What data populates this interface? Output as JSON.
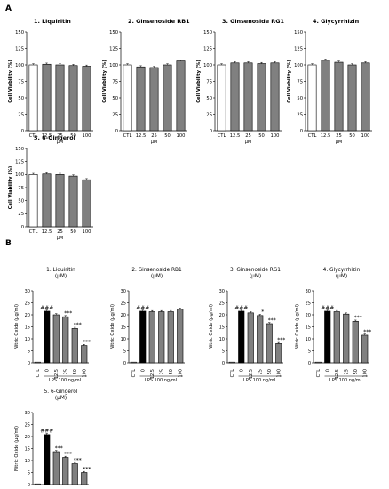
{
  "panel_labels": {
    "a": "A",
    "b": "B"
  },
  "chart_data": [
    {
      "panel": "A",
      "type": "bar",
      "title": "1. Liquiritin",
      "ylabel": "Cell Viability (%)",
      "ylim": [
        0,
        150
      ],
      "yticks": [
        0,
        25,
        50,
        75,
        100,
        125,
        150
      ],
      "categories": [
        "CTL",
        "12.5",
        "25",
        "50",
        "100"
      ],
      "unit": "μM",
      "values": [
        100,
        101,
        100,
        99,
        98
      ],
      "bar_colors": [
        "#ffffff",
        "#808080",
        "#808080",
        "#808080",
        "#808080"
      ],
      "annotations": [
        "",
        "",
        "",
        "",
        ""
      ]
    },
    {
      "panel": "A",
      "type": "bar",
      "title": "2. Ginsenoside RB1",
      "ylabel": "Cell Viability (%)",
      "ylim": [
        0,
        150
      ],
      "yticks": [
        0,
        25,
        50,
        75,
        100,
        125,
        150
      ],
      "categories": [
        "CTL",
        "12.5",
        "25",
        "50",
        "100"
      ],
      "unit": "μM",
      "values": [
        100,
        97,
        96,
        100,
        106
      ],
      "bar_colors": [
        "#ffffff",
        "#808080",
        "#808080",
        "#808080",
        "#808080"
      ],
      "annotations": [
        "",
        "",
        "",
        "",
        ""
      ]
    },
    {
      "panel": "A",
      "type": "bar",
      "title": "3. Ginsenoside RG1",
      "ylabel": "Cell Viability (%)",
      "ylim": [
        0,
        150
      ],
      "yticks": [
        0,
        25,
        50,
        75,
        100,
        125,
        150
      ],
      "categories": [
        "CTL",
        "12.5",
        "25",
        "50",
        "100"
      ],
      "unit": "μM",
      "values": [
        100,
        103,
        103,
        102,
        103
      ],
      "bar_colors": [
        "#ffffff",
        "#808080",
        "#808080",
        "#808080",
        "#808080"
      ],
      "annotations": [
        "",
        "",
        "",
        "",
        ""
      ]
    },
    {
      "panel": "A",
      "type": "bar",
      "title": "4. Glycyrrhizin",
      "ylabel": "Cell Viability (%)",
      "ylim": [
        0,
        150
      ],
      "yticks": [
        0,
        25,
        50,
        75,
        100,
        125,
        150
      ],
      "categories": [
        "CTL",
        "12.5",
        "25",
        "50",
        "100"
      ],
      "unit": "μM",
      "values": [
        100,
        107,
        104,
        100,
        103
      ],
      "bar_colors": [
        "#ffffff",
        "#808080",
        "#808080",
        "#808080",
        "#808080"
      ],
      "annotations": [
        "",
        "",
        "",
        "",
        ""
      ]
    },
    {
      "panel": "A",
      "type": "bar",
      "title": "5. 6-Gingerol",
      "ylabel": "Cell Viability (%)",
      "ylim": [
        0,
        150
      ],
      "yticks": [
        0,
        25,
        50,
        75,
        100,
        125,
        150
      ],
      "categories": [
        "CTL",
        "12.5",
        "25",
        "50",
        "100"
      ],
      "unit": "μM",
      "values": [
        100,
        101,
        100,
        97,
        90
      ],
      "bar_colors": [
        "#ffffff",
        "#808080",
        "#808080",
        "#808080",
        "#808080"
      ],
      "annotations": [
        "",
        "",
        "",
        "",
        ""
      ]
    },
    {
      "panel": "B",
      "type": "bar",
      "title": "1. Liquiritin",
      "title2": "(μM)",
      "ylabel": "Nitric Oxide (μg/ml)",
      "ylim": [
        0,
        30
      ],
      "yticks": [
        0,
        5,
        10,
        15,
        20,
        25,
        30
      ],
      "categories": [
        "CTL",
        "0",
        "12.5",
        "25",
        "50",
        "100"
      ],
      "unit": "LPS 100 ng/mL",
      "values": [
        0.3,
        21.5,
        20.0,
        19.2,
        14.3,
        7.2
      ],
      "bar_colors": [
        "#ffffff",
        "#000000",
        "#808080",
        "#808080",
        "#808080",
        "#808080"
      ],
      "annotations": [
        "",
        "###",
        "",
        "***",
        "***",
        "***"
      ]
    },
    {
      "panel": "B",
      "type": "bar",
      "title": "2. Ginsenoside RB1",
      "title2": "(μM)",
      "ylabel": "Nitric Oxide (μg/ml)",
      "ylim": [
        0,
        30
      ],
      "yticks": [
        0,
        5,
        10,
        15,
        20,
        25,
        30
      ],
      "categories": [
        "CTL",
        "0",
        "12.5",
        "25",
        "50",
        "100"
      ],
      "unit": "LPS 100 ng/mL",
      "values": [
        0.3,
        21.5,
        21.3,
        21.3,
        21.3,
        22.3
      ],
      "bar_colors": [
        "#ffffff",
        "#000000",
        "#808080",
        "#808080",
        "#808080",
        "#808080"
      ],
      "annotations": [
        "",
        "###",
        "",
        "",
        "",
        ""
      ]
    },
    {
      "panel": "B",
      "type": "bar",
      "title": "3. Ginsenoside RG1",
      "title2": "(μM)",
      "ylabel": "Nitric Oxide (μg/ml)",
      "ylim": [
        0,
        30
      ],
      "yticks": [
        0,
        5,
        10,
        15,
        20,
        25,
        30
      ],
      "categories": [
        "CTL",
        "0",
        "12.5",
        "25",
        "50",
        "100"
      ],
      "unit": "LPS 100 ng/mL",
      "values": [
        0.3,
        21.5,
        20.8,
        19.7,
        16.3,
        8.0
      ],
      "bar_colors": [
        "#ffffff",
        "#000000",
        "#808080",
        "#808080",
        "#808080",
        "#808080"
      ],
      "annotations": [
        "",
        "###",
        "",
        "*",
        "***",
        "***"
      ]
    },
    {
      "panel": "B",
      "type": "bar",
      "title": "4. Glycyrrhizin",
      "title2": "(μM)",
      "ylabel": "Nitric Oxide (μg/ml)",
      "ylim": [
        0,
        30
      ],
      "yticks": [
        0,
        5,
        10,
        15,
        20,
        25,
        30
      ],
      "categories": [
        "CTL",
        "0",
        "12.5",
        "25",
        "50",
        "100"
      ],
      "unit": "LPS 100 ng/mL",
      "values": [
        0.3,
        21.5,
        21.3,
        20.3,
        17.3,
        11.5
      ],
      "bar_colors": [
        "#ffffff",
        "#000000",
        "#808080",
        "#808080",
        "#808080",
        "#808080"
      ],
      "annotations": [
        "",
        "###",
        "",
        "",
        "***",
        "***"
      ]
    },
    {
      "panel": "B",
      "type": "bar",
      "title": "5. 6-Gingerol",
      "title2": "(μM)",
      "ylabel": "Nitric Oxide (μg/ml)",
      "ylim": [
        0,
        30
      ],
      "yticks": [
        0,
        5,
        10,
        15,
        20,
        25,
        30
      ],
      "categories": [
        "CTL",
        "0",
        "12.5",
        "25",
        "50",
        "100"
      ],
      "unit": "LPS 100 ng/mL",
      "values": [
        0.3,
        20.8,
        13.7,
        11.3,
        8.7,
        5.0
      ],
      "bar_colors": [
        "#ffffff",
        "#000000",
        "#808080",
        "#808080",
        "#808080",
        "#808080"
      ],
      "annotations": [
        "",
        "###",
        "***",
        "***",
        "***",
        "***"
      ]
    }
  ]
}
